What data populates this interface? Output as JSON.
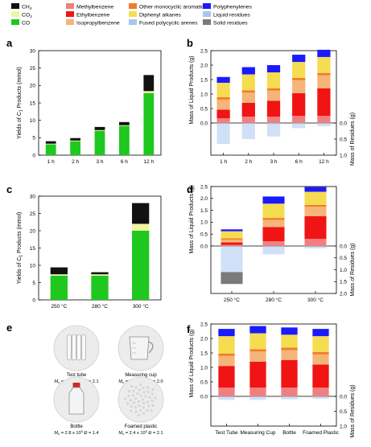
{
  "legend": {
    "entries": [
      {
        "label": "CH",
        "sub": "4",
        "color": "#111111"
      },
      {
        "label": "Methylbenzene",
        "color": "#f08080"
      },
      {
        "label": "Other monocyclic aromatics",
        "color": "#f07d28"
      },
      {
        "label": "Polyphenylenes",
        "color": "#1a1aff"
      },
      {
        "label": "CO",
        "sub": "2",
        "color": "#f0f5a0"
      },
      {
        "label": "Ethylbenzene",
        "color": "#f01414"
      },
      {
        "label": "Diphenyl alkanes",
        "color": "#f5dc50"
      },
      {
        "label": "Liquid residues",
        "color": "#a9c6ee"
      },
      {
        "label": "CO",
        "color": "#1ec81e"
      },
      {
        "label": "Isopropylbenzene",
        "color": "#f5b478"
      },
      {
        "label": "Fused polycyclic arenes",
        "color": "#a9c6ee"
      },
      {
        "label": "Solid residues",
        "color": "#7a7a7a"
      }
    ]
  },
  "panel_labels": {
    "a": "a",
    "b": "b",
    "c": "c",
    "d": "d",
    "e": "e",
    "f": "f"
  },
  "units": {
    "left_axis_c1": "Yields of C",
    "left_axis_c1_sub": "1",
    "left_axis_c1_tail": " Products (mmol)",
    "liquid_axis": "Mass of Liquid Products (g)",
    "residue_axis": "Mass of Residues (g)"
  },
  "chart_data": [
    {
      "panel": "a",
      "type": "bar",
      "stacked": true,
      "categories": [
        "1 h",
        "2 h",
        "3 h",
        "6 h",
        "12 h"
      ],
      "ylabel": "Yields of C1 Products (mmol)",
      "ylim": [
        0,
        30
      ],
      "yticks": [
        0,
        5,
        10,
        15,
        20,
        25,
        30
      ],
      "series": [
        {
          "name": "CO",
          "color": "#1ec81e",
          "values": [
            3.1,
            4.0,
            7.0,
            8.4,
            17.8
          ]
        },
        {
          "name": "CO2",
          "color": "#f0f5a0",
          "values": [
            0.2,
            0.2,
            0.2,
            0.2,
            0.6
          ]
        },
        {
          "name": "CH4",
          "color": "#111111",
          "values": [
            0.7,
            0.7,
            0.9,
            0.9,
            4.6
          ]
        }
      ]
    },
    {
      "panel": "b",
      "type": "bar",
      "stacked": true,
      "categories": [
        "1 h",
        "2 h",
        "3 h",
        "6 h",
        "12 h"
      ],
      "ylabel": "Mass of Liquid Products (g)",
      "ylabel_right": "Mass of Residues (g)",
      "ylim": [
        0,
        2.5
      ],
      "yticks": [
        0,
        0.5,
        1.0,
        1.5,
        2.0,
        2.5
      ],
      "residue_ylim": [
        0,
        1.0
      ],
      "residue_ticks": [
        0,
        0.5,
        1.0
      ],
      "series": [
        {
          "name": "Methylbenzene",
          "color": "#f08080",
          "values": [
            0.16,
            0.22,
            0.22,
            0.25,
            0.25
          ]
        },
        {
          "name": "Ethylbenzene",
          "color": "#f01414",
          "values": [
            0.3,
            0.48,
            0.55,
            0.78,
            0.95
          ]
        },
        {
          "name": "Isopropylbenzene",
          "color": "#f5b478",
          "values": [
            0.35,
            0.35,
            0.35,
            0.45,
            0.45
          ]
        },
        {
          "name": "Other monocyclic aromatics",
          "color": "#f07d28",
          "values": [
            0.08,
            0.08,
            0.08,
            0.08,
            0.08
          ]
        },
        {
          "name": "Diphenyl alkanes",
          "color": "#f5dc50",
          "values": [
            0.5,
            0.55,
            0.55,
            0.55,
            0.55
          ]
        },
        {
          "name": "Polyphenylenes",
          "color": "#1a1aff",
          "values": [
            0.2,
            0.25,
            0.25,
            0.25,
            0.25
          ]
        }
      ],
      "residues": [
        {
          "name": "Liquid residues",
          "color": "#a9c6ee",
          "values": [
            0.65,
            0.5,
            0.42,
            0.16,
            0.1
          ]
        },
        {
          "name": "Solid residues",
          "color": "#7a7a7a",
          "values": [
            0,
            0,
            0,
            0,
            0
          ]
        }
      ]
    },
    {
      "panel": "c",
      "type": "bar",
      "stacked": true,
      "categories": [
        "250 °C",
        "280 °C",
        "300 °C"
      ],
      "ylabel": "Yields of C1 Products (mmol)",
      "ylim": [
        0,
        30
      ],
      "yticks": [
        0,
        5,
        10,
        15,
        20,
        25,
        30
      ],
      "series": [
        {
          "name": "CO",
          "color": "#1ec81e",
          "values": [
            7.0,
            7.0,
            20.0
          ]
        },
        {
          "name": "CO2",
          "color": "#f0f5a0",
          "values": [
            0.4,
            0.4,
            2.0
          ]
        },
        {
          "name": "CH4",
          "color": "#111111",
          "values": [
            2.0,
            0.6,
            6.0
          ]
        }
      ]
    },
    {
      "panel": "d",
      "type": "bar",
      "stacked": true,
      "categories": [
        "250 °C",
        "280 °C",
        "300 °C"
      ],
      "ylabel": "Mass of Liquid Products (g)",
      "ylabel_right": "Mass of Residues (g)",
      "ylim": [
        0,
        2.5
      ],
      "yticks": [
        0,
        0.5,
        1.0,
        1.5,
        2.0,
        2.5
      ],
      "residue_ylim": [
        0,
        2.0
      ],
      "residue_ticks": [
        0,
        0.5,
        1.0,
        1.5,
        2.0
      ],
      "series": [
        {
          "name": "Methylbenzene",
          "color": "#f08080",
          "values": [
            0.05,
            0.2,
            0.3
          ]
        },
        {
          "name": "Ethylbenzene",
          "color": "#f01414",
          "values": [
            0.1,
            0.6,
            0.95
          ]
        },
        {
          "name": "Isopropylbenzene",
          "color": "#f5b478",
          "values": [
            0.12,
            0.3,
            0.4
          ]
        },
        {
          "name": "Other monocyclic aromatics",
          "color": "#f07d28",
          "values": [
            0.05,
            0.08,
            0.08
          ]
        },
        {
          "name": "Diphenyl alkanes",
          "color": "#f5dc50",
          "values": [
            0.3,
            0.6,
            0.55
          ]
        },
        {
          "name": "Polyphenylenes",
          "color": "#1a1aff",
          "values": [
            0.08,
            0.3,
            0.2
          ]
        }
      ],
      "residues": [
        {
          "name": "Liquid residues",
          "color": "#a9c6ee",
          "values": [
            1.1,
            0.35,
            0.1
          ]
        },
        {
          "name": "Solid residues",
          "color": "#7a7a7a",
          "values": [
            0.5,
            0,
            0
          ]
        }
      ]
    },
    {
      "panel": "f",
      "type": "bar",
      "stacked": true,
      "categories": [
        "Test Tube",
        "Measuring Cup",
        "Bottle",
        "Foamed Plastic"
      ],
      "ylabel": "Mass of Liquid Products (g)",
      "ylabel_right": "Mass of Residues (g)",
      "ylim": [
        0,
        2.5
      ],
      "yticks": [
        0,
        0.5,
        1.0,
        1.5,
        2.0,
        2.5
      ],
      "residue_ylim": [
        0,
        1.0
      ],
      "residue_ticks": [
        0,
        0.5,
        1.0
      ],
      "series": [
        {
          "name": "Methylbenzene",
          "color": "#f08080",
          "values": [
            0.3,
            0.3,
            0.3,
            0.3
          ]
        },
        {
          "name": "Ethylbenzene",
          "color": "#f01414",
          "values": [
            0.75,
            0.9,
            0.95,
            0.8
          ]
        },
        {
          "name": "Isopropylbenzene",
          "color": "#f5b478",
          "values": [
            0.35,
            0.35,
            0.35,
            0.35
          ]
        },
        {
          "name": "Other monocyclic aromatics",
          "color": "#f07d28",
          "values": [
            0.08,
            0.08,
            0.08,
            0.08
          ]
        },
        {
          "name": "Diphenyl alkanes",
          "color": "#f5dc50",
          "values": [
            0.6,
            0.55,
            0.45,
            0.55
          ]
        },
        {
          "name": "Polyphenylenes",
          "color": "#1a1aff",
          "values": [
            0.25,
            0.25,
            0.25,
            0.25
          ]
        }
      ],
      "residues": [
        {
          "name": "Liquid residues",
          "color": "#a9c6ee",
          "values": [
            0.12,
            0.12,
            0.1,
            0.08
          ]
        },
        {
          "name": "Solid residues",
          "color": "#7a7a7a",
          "values": [
            0,
            0,
            0,
            0
          ]
        }
      ]
    }
  ],
  "photos": [
    {
      "title": "Test tube",
      "mn": "2.2 x 10",
      "mn_exp": "5",
      "d": "2.1",
      "icon": "test-tubes-icon"
    },
    {
      "title": "Measuring cup",
      "mn": "2.4 x 10",
      "mn_exp": "5",
      "d": "2.0",
      "icon": "measuring-cup-icon"
    },
    {
      "title": "Bottle",
      "mn": "2.8 x 10",
      "mn_exp": "5",
      "d": "1.4",
      "icon": "bottle-icon"
    },
    {
      "title": "Foamed plastic",
      "mn": "2.4 x 10",
      "mn_exp": "5",
      "d": "2.1",
      "icon": "foam-icon"
    }
  ],
  "photo_labels": {
    "mn_prefix": "M",
    "mn_sub": "n",
    "mn_eq": " = ",
    "d_prefix": "Đ",
    "d_eq": " = "
  }
}
